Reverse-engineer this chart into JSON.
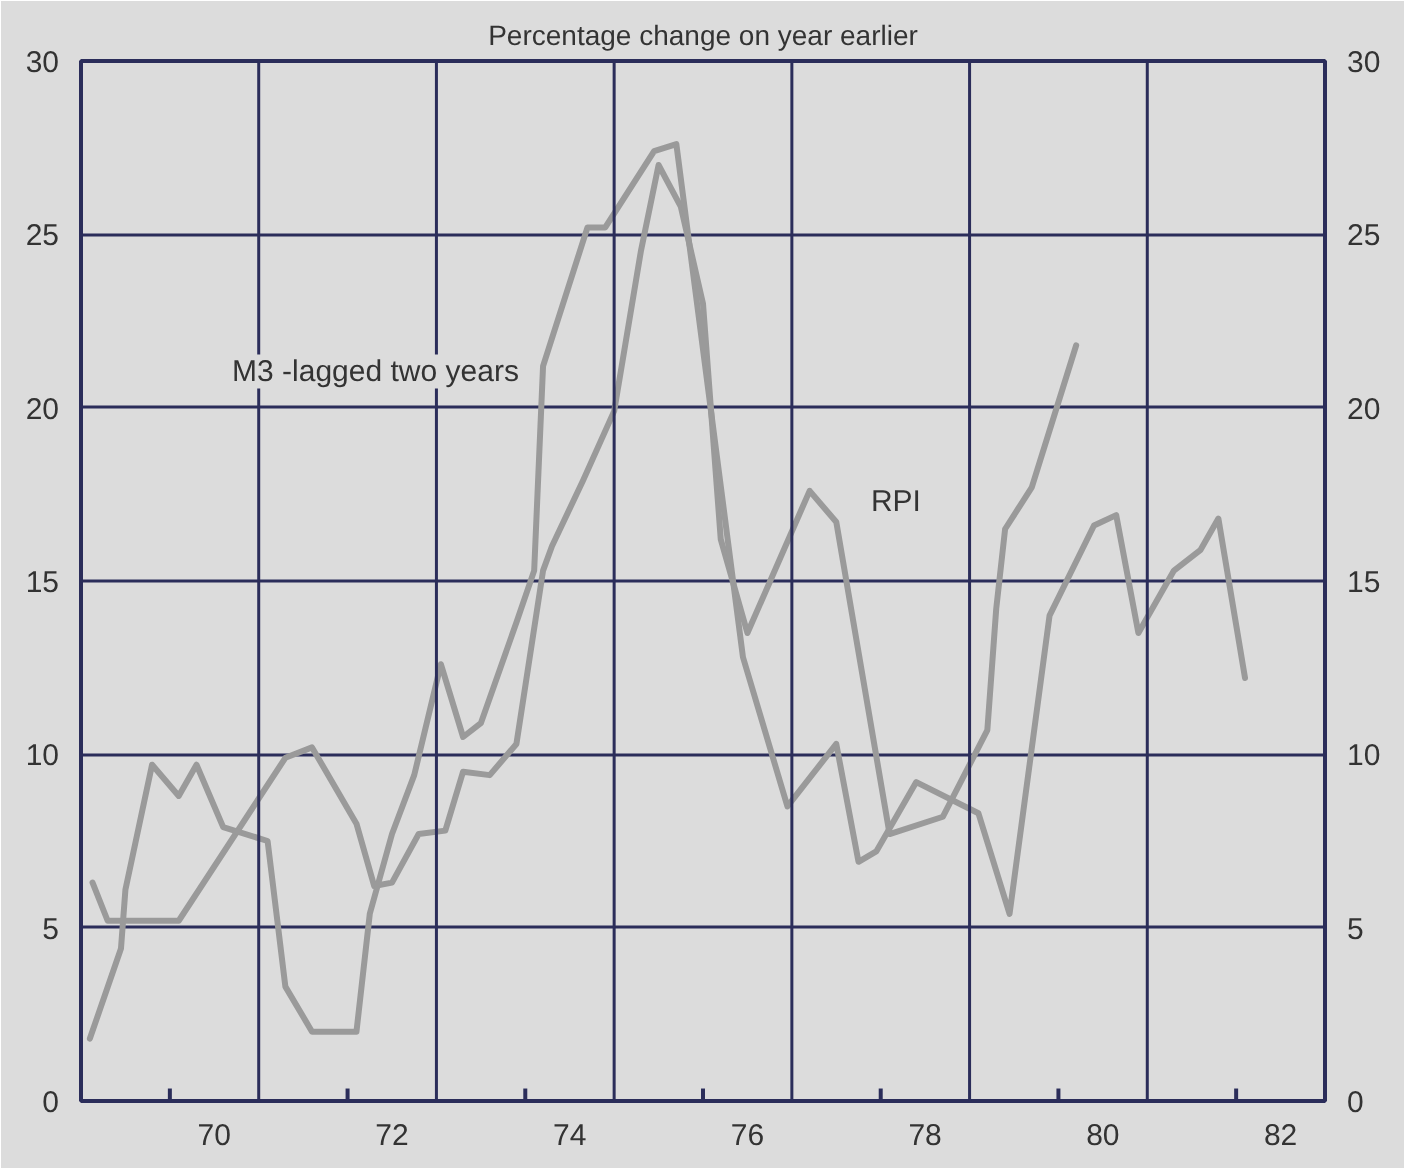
{
  "chart_data": {
    "type": "line",
    "title": "Percentage change on year earlier",
    "xlim": [
      69,
      83
    ],
    "ylim": [
      0,
      30
    ],
    "yticks": [
      0,
      5,
      10,
      15,
      20,
      25,
      30
    ],
    "y2lim": [
      0,
      30
    ],
    "y2ticks": [
      0,
      5,
      10,
      15,
      20,
      25,
      30
    ],
    "xticks": [
      {
        "value": 70,
        "label": null
      },
      {
        "value": 70.5,
        "label": "70"
      },
      {
        "value": 72,
        "label": null
      },
      {
        "value": 72.5,
        "label": "72"
      },
      {
        "value": 74,
        "label": null
      },
      {
        "value": 74.5,
        "label": "74"
      },
      {
        "value": 76,
        "label": null
      },
      {
        "value": 76.5,
        "label": "76"
      },
      {
        "value": 78,
        "label": null
      },
      {
        "value": 78.5,
        "label": "78"
      },
      {
        "value": 80,
        "label": null
      },
      {
        "value": 80.5,
        "label": "80"
      },
      {
        "value": 82,
        "label": null
      },
      {
        "value": 82.5,
        "label": "82"
      }
    ],
    "grid": "y",
    "ref_lines": [
      {
        "axis": "x",
        "value": 71,
        "color": "#2b2d5a"
      },
      {
        "axis": "x",
        "value": 73,
        "color": "#2b2d5a"
      },
      {
        "axis": "x",
        "value": 75,
        "color": "#2b2d5a"
      },
      {
        "axis": "x",
        "value": 77,
        "color": "#2b2d5a"
      },
      {
        "axis": "x",
        "value": 79,
        "color": "#2b2d5a"
      },
      {
        "axis": "x",
        "value": 81,
        "color": "#2b2d5a"
      }
    ],
    "series": [
      {
        "name": "RPI",
        "color": "#9a9a9a",
        "x": [
          69.13,
          69.3,
          70.1,
          71.3,
          71.6,
          72.1,
          72.3,
          72.5,
          72.8,
          73.1,
          73.3,
          73.6,
          73.9,
          74.2,
          74.3,
          74.65,
          75.0,
          75.3,
          75.5,
          75.75,
          76.0,
          76.2,
          76.5,
          77.2,
          77.5,
          78.1,
          78.7,
          79.2,
          79.3,
          79.4,
          79.7,
          80.2
        ],
        "values": [
          6.3,
          5.2,
          5.2,
          9.9,
          10.2,
          8.0,
          6.2,
          6.3,
          7.7,
          7.8,
          9.5,
          9.4,
          10.3,
          15.3,
          16.0,
          17.9,
          19.9,
          24.5,
          27.0,
          25.8,
          23.0,
          16.2,
          13.5,
          17.6,
          16.7,
          7.7,
          8.2,
          10.7,
          14.2,
          16.5,
          17.7,
          21.8
        ]
      },
      {
        "name": "M3 -lagged two years",
        "color": "#9a9a9a",
        "x": [
          69.1,
          69.45,
          69.5,
          69.8,
          70.1,
          70.3,
          70.6,
          71.1,
          71.3,
          71.6,
          72.1,
          72.25,
          72.5,
          72.75,
          73.05,
          73.3,
          73.5,
          73.9,
          74.1,
          74.2,
          74.7,
          74.9,
          75.45,
          75.7,
          76.45,
          76.95,
          77.5,
          77.75,
          77.95,
          78.4,
          79.1,
          79.45,
          79.9,
          80.4,
          80.65,
          80.9,
          81.3,
          81.6,
          81.8,
          82.1
        ],
        "values": [
          1.8,
          4.4,
          6.1,
          9.7,
          8.8,
          9.7,
          7.9,
          7.5,
          3.3,
          2.0,
          2.0,
          5.4,
          7.7,
          9.4,
          12.6,
          10.5,
          10.9,
          13.8,
          15.3,
          21.2,
          25.2,
          25.2,
          27.4,
          27.6,
          12.8,
          8.5,
          10.3,
          6.9,
          7.2,
          9.2,
          8.3,
          5.4,
          14.0,
          16.6,
          16.9,
          13.5,
          15.3,
          15.9,
          16.8,
          12.2
        ]
      }
    ]
  }
}
